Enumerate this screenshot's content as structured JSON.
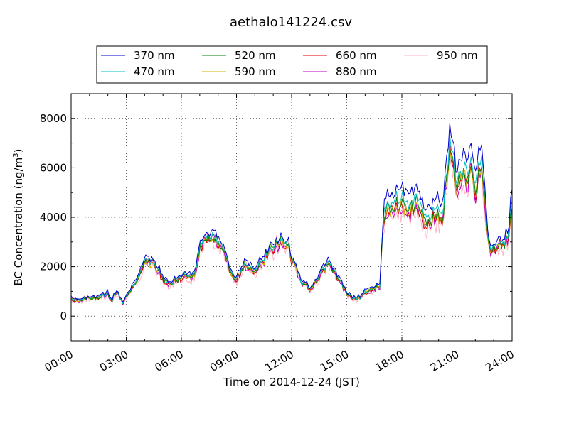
{
  "chart_data": {
    "type": "line",
    "title": "aethalo141224.csv",
    "xlabel": "Time on 2014-12-24 (JST)",
    "ylabel_main": "BC Concentration (ng/m",
    "ylabel_sup": "3",
    "ylabel_end": ")",
    "xlim": [
      0,
      24
    ],
    "ylim": [
      -1000,
      9000
    ],
    "x_ticks": [
      0,
      3,
      6,
      9,
      12,
      15,
      18,
      21,
      24
    ],
    "x_tick_labels": [
      "00:00",
      "03:00",
      "06:00",
      "09:00",
      "12:00",
      "15:00",
      "18:00",
      "21:00",
      "24:00"
    ],
    "y_ticks": [
      0,
      2000,
      4000,
      6000,
      8000
    ],
    "y_tick_labels": [
      "0",
      "2000",
      "4000",
      "6000",
      "8000"
    ],
    "grid": true,
    "legend_position": "top-center",
    "x_unit": "hour",
    "base_x": [
      0,
      0.5,
      1,
      1.5,
      2,
      2.2,
      2.5,
      2.8,
      3,
      3.3,
      3.5,
      3.8,
      4,
      4.2,
      4.5,
      4.8,
      5,
      5.3,
      5.5,
      5.8,
      6,
      6.3,
      6.5,
      6.8,
      7,
      7.3,
      7.5,
      7.8,
      8,
      8.3,
      8.5,
      8.8,
      9,
      9.3,
      9.5,
      9.8,
      10,
      10.3,
      10.5,
      10.8,
      11,
      11.3,
      11.5,
      11.8,
      12,
      12.3,
      12.5,
      12.8,
      13,
      13.3,
      13.5,
      13.8,
      14,
      14.3,
      14.5,
      14.8,
      15,
      15.3,
      15.5,
      15.8,
      16,
      16.3,
      16.5,
      16.8,
      17,
      17.3,
      17.5,
      17.8,
      18,
      18.3,
      18.5,
      18.8,
      19,
      19.3,
      19.5,
      19.8,
      20,
      20.2,
      20.4,
      20.6,
      20.8,
      21,
      21.2,
      21.4,
      21.6,
      21.8,
      22,
      22.2,
      22.4,
      22.6,
      22.8,
      23,
      23.2,
      23.4,
      23.6,
      23.8,
      24
    ],
    "base_y": [
      700,
      650,
      700,
      750,
      900,
      600,
      1000,
      500,
      800,
      1100,
      1400,
      1800,
      2100,
      2200,
      2100,
      1800,
      1400,
      1200,
      1300,
      1500,
      1600,
      1600,
      1500,
      1900,
      2800,
      3000,
      3000,
      3300,
      3000,
      2600,
      2100,
      1500,
      1500,
      1900,
      2100,
      1900,
      1800,
      2100,
      2300,
      2600,
      2800,
      2900,
      3000,
      2800,
      2200,
      1800,
      1400,
      1200,
      1100,
      1300,
      1600,
      1900,
      2100,
      1800,
      1500,
      1200,
      900,
      700,
      700,
      800,
      1000,
      1100,
      1100,
      1200,
      3900,
      4200,
      4300,
      4500,
      4400,
      4300,
      4200,
      4400,
      4100,
      3600,
      3800,
      4000,
      4100,
      3700,
      5200,
      6600,
      6000,
      4800,
      5700,
      5400,
      5500,
      5900,
      5000,
      5900,
      5600,
      3500,
      2700,
      2600,
      2700,
      2900,
      2900,
      3300,
      4400
    ],
    "series": [
      {
        "name": "370 nm",
        "color": "#0000cc",
        "factor": 1.15,
        "jitter": 0.6
      },
      {
        "name": "470 nm",
        "color": "#00bfbf",
        "factor": 1.07,
        "jitter": 0.7
      },
      {
        "name": "520 nm",
        "color": "#008000",
        "factor": 1.03,
        "jitter": 0.8
      },
      {
        "name": "590 nm",
        "color": "#d4b000",
        "factor": 1.01,
        "jitter": 0.8
      },
      {
        "name": "660 nm",
        "color": "#e00000",
        "factor": 1.0,
        "jitter": 0.9
      },
      {
        "name": "880 nm",
        "color": "#bf00bf",
        "factor": 0.99,
        "jitter": 1.1
      },
      {
        "name": "950 nm",
        "color": "#ffb6c1",
        "factor": 0.96,
        "jitter": 1.8
      }
    ]
  }
}
